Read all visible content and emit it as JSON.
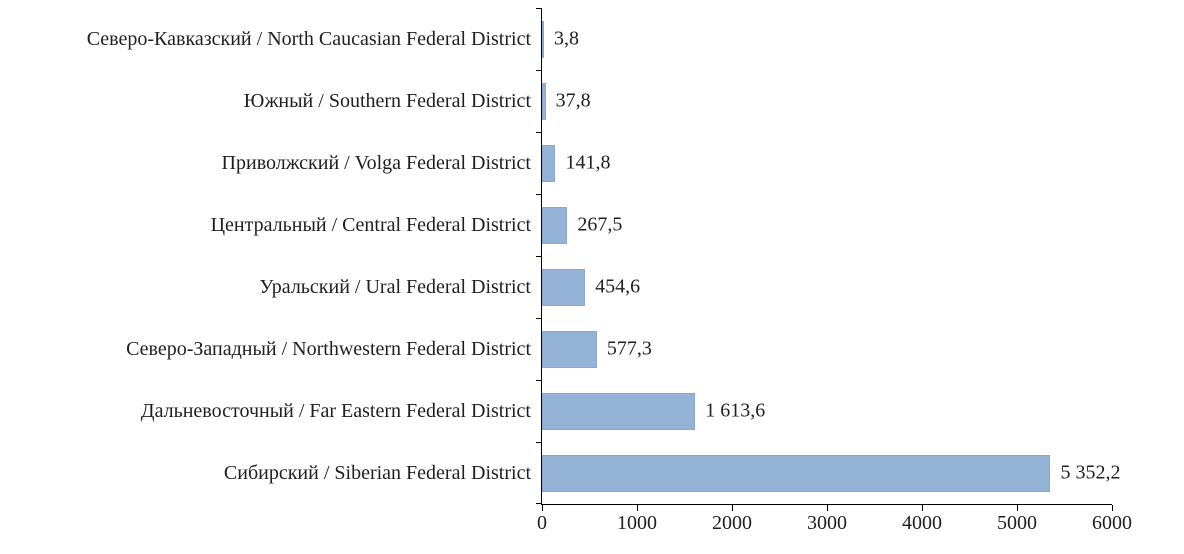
{
  "chart_data": {
    "type": "bar",
    "orientation": "horizontal",
    "title": "",
    "xlabel": "",
    "ylabel": "",
    "categories": [
      "Северо-Кавказский / North Caucasian Federal District",
      "Южный / Southern Federal District",
      "Приволжский / Volga Federal District",
      "Центральный / Central Federal District",
      "Уральский / Ural Federal District",
      "Северо-Западный / Northwestern Federal District",
      "Дальневосточный / Far Eastern Federal District",
      "Сибирский / Siberian Federal District"
    ],
    "values": [
      3.8,
      37.8,
      141.8,
      267.5,
      454.6,
      577.3,
      1613.6,
      5352.2
    ],
    "value_labels": [
      "3,8",
      "37,8",
      "141,8",
      "267,5",
      "454,6",
      "577,3",
      "1 613,6",
      "5 352,2"
    ],
    "xlim": [
      0,
      6000
    ],
    "x_ticks": [
      0,
      1000,
      2000,
      3000,
      4000,
      5000,
      6000
    ],
    "x_tick_labels": [
      "0",
      "1000",
      "2000",
      "3000",
      "4000",
      "5000",
      "6000"
    ],
    "grid": false,
    "legend": null,
    "bar_color": "#95B3D7",
    "bar_border_color": "#89A8D0",
    "axis_color": "#000000",
    "text_color": "#1f1f1f",
    "background_color": "#ffffff"
  }
}
